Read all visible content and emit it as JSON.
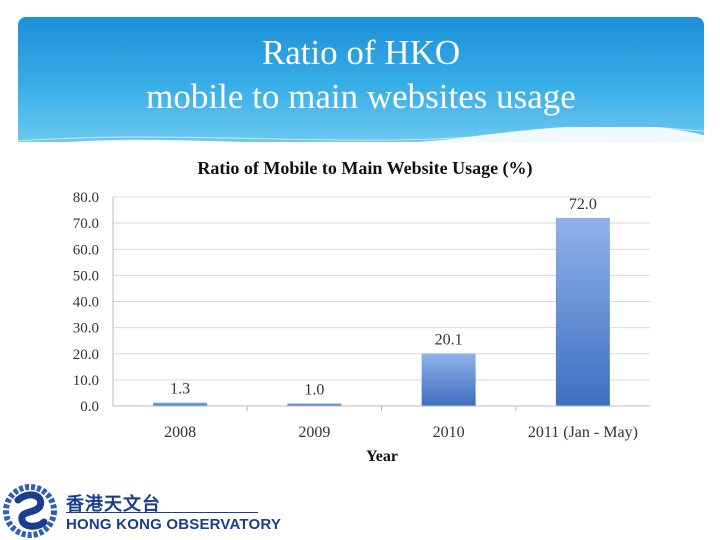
{
  "slide": {
    "title_line1": "Ratio of HKO",
    "title_line2": "mobile to main websites usage"
  },
  "logo": {
    "chinese": "香港天文台",
    "english": "HONG KONG OBSERVATORY"
  },
  "colors": {
    "header_top": "#1d8fd8",
    "header_bottom": "#6cc8ef",
    "bar_top": "#8fb2e8",
    "bar_bottom": "#3f6fc2",
    "logo": "#1a3d8f"
  },
  "chart_data": {
    "type": "bar",
    "title": "Ratio of Mobile to Main Website Usage (%)",
    "xlabel": "Year",
    "ylabel": "",
    "categories": [
      "2008",
      "2009",
      "2010",
      "2011 (Jan - May)"
    ],
    "values": [
      1.3,
      1.0,
      20.1,
      72.0
    ],
    "value_labels": [
      "1.3",
      "1.0",
      "20.1",
      "72.0"
    ],
    "ylim": [
      0,
      80
    ],
    "yticks": [
      "0.0",
      "10.0",
      "20.0",
      "30.0",
      "40.0",
      "50.0",
      "60.0",
      "70.0",
      "80.0"
    ],
    "grid": true,
    "legend": "none"
  }
}
